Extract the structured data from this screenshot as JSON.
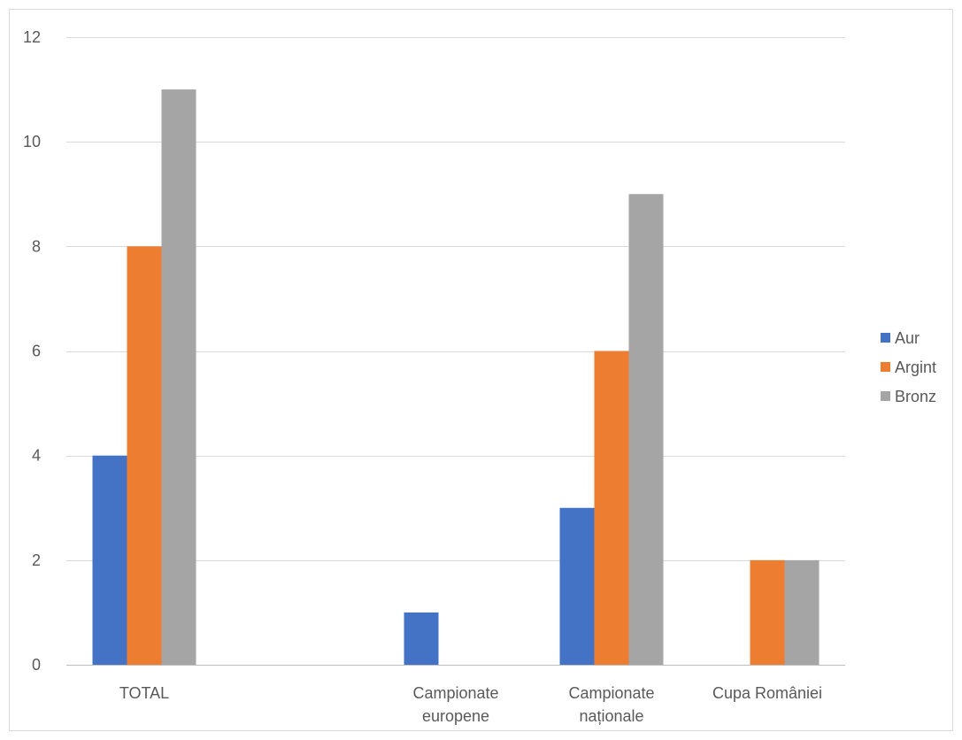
{
  "chart_data": {
    "type": "bar",
    "title": "",
    "xlabel": "",
    "ylabel": "",
    "categories": [
      [
        "TOTAL"
      ],
      [
        ""
      ],
      [
        "Campionate",
        "europene"
      ],
      [
        "Campionate",
        "naționale"
      ],
      [
        "Cupa României"
      ]
    ],
    "series": [
      {
        "name": "Aur",
        "color": "#4472c4",
        "values": [
          4,
          0,
          1,
          3,
          0
        ]
      },
      {
        "name": "Argint",
        "color": "#ed7d31",
        "values": [
          8,
          0,
          0,
          6,
          2
        ]
      },
      {
        "name": "Bronz",
        "color": "#a5a5a5",
        "values": [
          11,
          0,
          0,
          9,
          2
        ]
      }
    ],
    "ylim": [
      0,
      12
    ],
    "yticks": [
      "0",
      "2",
      "4",
      "6",
      "8",
      "10",
      "12"
    ],
    "grid": true,
    "legend_position": "right"
  }
}
